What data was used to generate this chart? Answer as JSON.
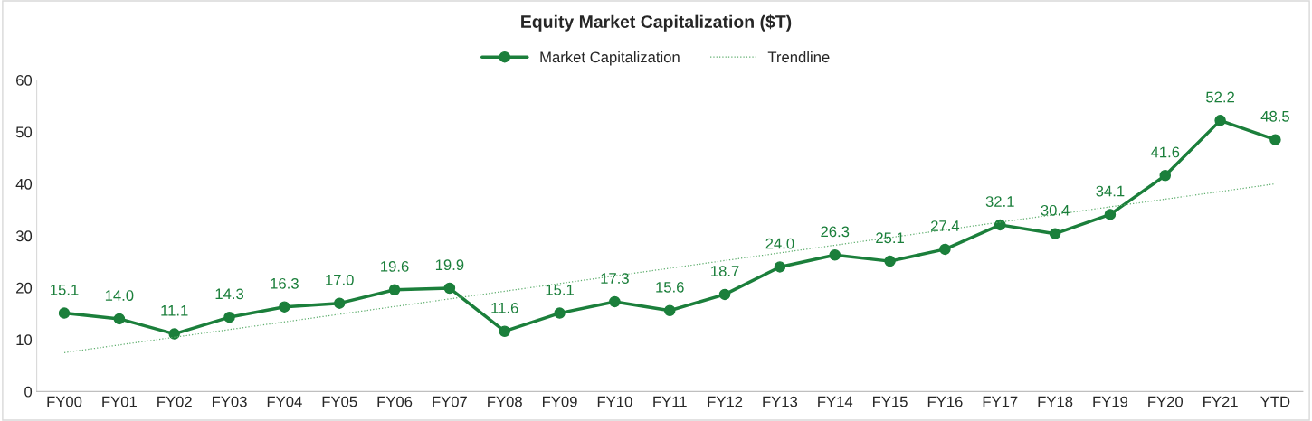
{
  "chart_data": {
    "type": "line",
    "title": "Equity Market Capitalization ($T)",
    "categories": [
      "FY00",
      "FY01",
      "FY02",
      "FY03",
      "FY04",
      "FY05",
      "FY06",
      "FY07",
      "FY08",
      "FY09",
      "FY10",
      "FY11",
      "FY12",
      "FY13",
      "FY14",
      "FY15",
      "FY16",
      "FY17",
      "FY18",
      "FY19",
      "FY20",
      "FY21",
      "YTD"
    ],
    "series": [
      {
        "name": "Market Capitalization",
        "color": "#1b7f3b",
        "marker": "circle",
        "line_style": "solid",
        "value_labels": [
          "15.1",
          "14.0",
          "11.1",
          "14.3",
          "16.3",
          "17.0",
          "19.6",
          "19.9",
          "11.6",
          "15.1",
          "17.3",
          "15.6",
          "18.7",
          "24.0",
          "26.3",
          "25.1",
          "27.4",
          "32.1",
          "30.4",
          "34.1",
          "41.6",
          "52.2",
          "48.5"
        ],
        "values": [
          15.1,
          14.0,
          11.1,
          14.3,
          16.3,
          17.0,
          19.6,
          19.9,
          11.6,
          15.1,
          17.3,
          15.6,
          18.7,
          24.0,
          26.3,
          25.1,
          27.4,
          32.1,
          30.4,
          34.1,
          41.6,
          52.2,
          48.5
        ]
      },
      {
        "name": "Trendline",
        "type": "line",
        "color": "#5fae6e",
        "marker": "none",
        "line_style": "dotted",
        "x": [
          "FY00",
          "YTD"
        ],
        "values": [
          7.5,
          40.0
        ]
      }
    ],
    "ylim": [
      0,
      60
    ],
    "yticks": [
      0,
      10,
      20,
      30,
      40,
      50,
      60
    ],
    "grid": false,
    "legend": "top"
  }
}
